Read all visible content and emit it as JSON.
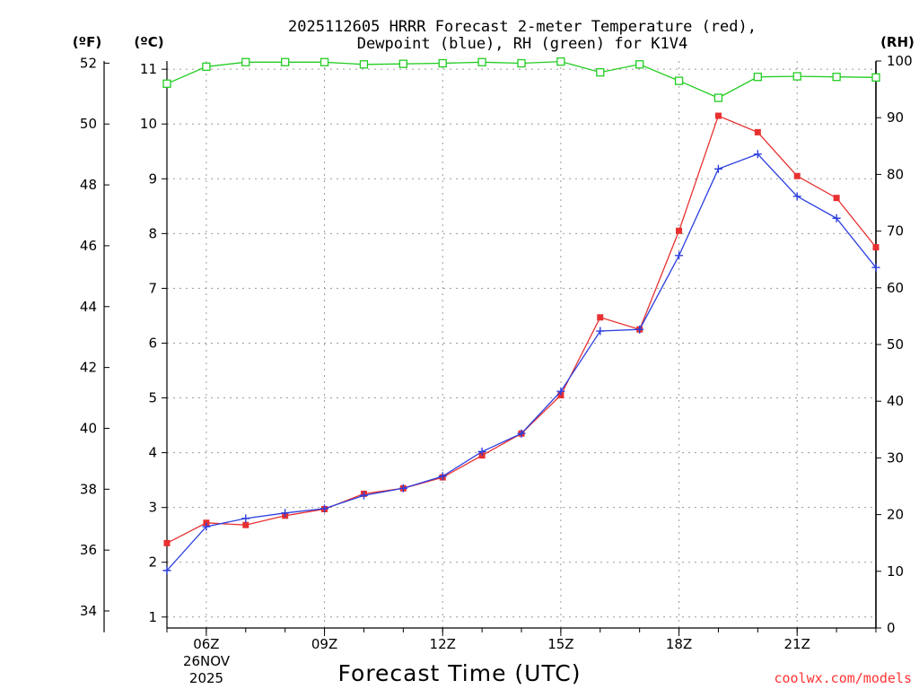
{
  "chart_data": {
    "type": "line",
    "title_line1": "2025112605 HRRR Forecast 2-meter Temperature (red),",
    "title_line2": "Dewpoint (blue), RH (green) for K1V4",
    "xlabel": "Forecast Time (UTC)",
    "credit": "coolwx.com/models",
    "date_line1": "26NOV",
    "date_line2": "2025",
    "units": {
      "left_f": "(ºF)",
      "left_c": "(ºC)",
      "right_rh": "(RH)"
    },
    "x_hours": [
      5,
      6,
      7,
      8,
      9,
      10,
      11,
      12,
      13,
      14,
      15,
      16,
      17,
      18,
      19,
      20,
      21,
      22,
      23
    ],
    "x_ticks": [
      {
        "hour": 6,
        "label": "06Z"
      },
      {
        "hour": 9,
        "label": "09Z"
      },
      {
        "hour": 12,
        "label": "12Z"
      },
      {
        "hour": 15,
        "label": "15Z"
      },
      {
        "hour": 18,
        "label": "18Z"
      },
      {
        "hour": 21,
        "label": "21Z"
      }
    ],
    "xlim": [
      5,
      23
    ],
    "ylim_c": [
      0.8,
      11.15
    ],
    "ylim_rh": [
      0,
      100
    ],
    "yticks_c": [
      1,
      2,
      3,
      4,
      5,
      6,
      7,
      8,
      9,
      10,
      11
    ],
    "yticks_f": [
      34,
      36,
      38,
      40,
      42,
      44,
      46,
      48,
      50,
      52
    ],
    "yticks_rh": [
      0,
      10,
      20,
      30,
      40,
      50,
      60,
      70,
      80,
      90,
      100
    ],
    "series": [
      {
        "name": "Temperature",
        "unit": "C",
        "color": "#e83030",
        "values": [
          2.35,
          2.72,
          2.68,
          2.85,
          2.97,
          3.25,
          3.35,
          3.55,
          3.95,
          4.35,
          5.05,
          6.47,
          6.25,
          8.05,
          10.15,
          9.85,
          9.05,
          8.65,
          7.75
        ]
      },
      {
        "name": "Dewpoint",
        "unit": "C",
        "color": "#2c3fe0",
        "values": [
          1.85,
          2.65,
          2.8,
          2.9,
          2.98,
          3.22,
          3.35,
          3.57,
          4.02,
          4.35,
          5.12,
          6.22,
          6.25,
          7.6,
          9.18,
          9.45,
          8.68,
          8.28,
          7.38
        ]
      },
      {
        "name": "RH",
        "unit": "%",
        "color": "#22cc22",
        "values": [
          96,
          99,
          99.8,
          99.8,
          99.8,
          99.4,
          99.5,
          99.6,
          99.8,
          99.6,
          99.9,
          98,
          99.4,
          96.5,
          93.5,
          97.2,
          97.3,
          97.2,
          97.1
        ]
      }
    ]
  }
}
